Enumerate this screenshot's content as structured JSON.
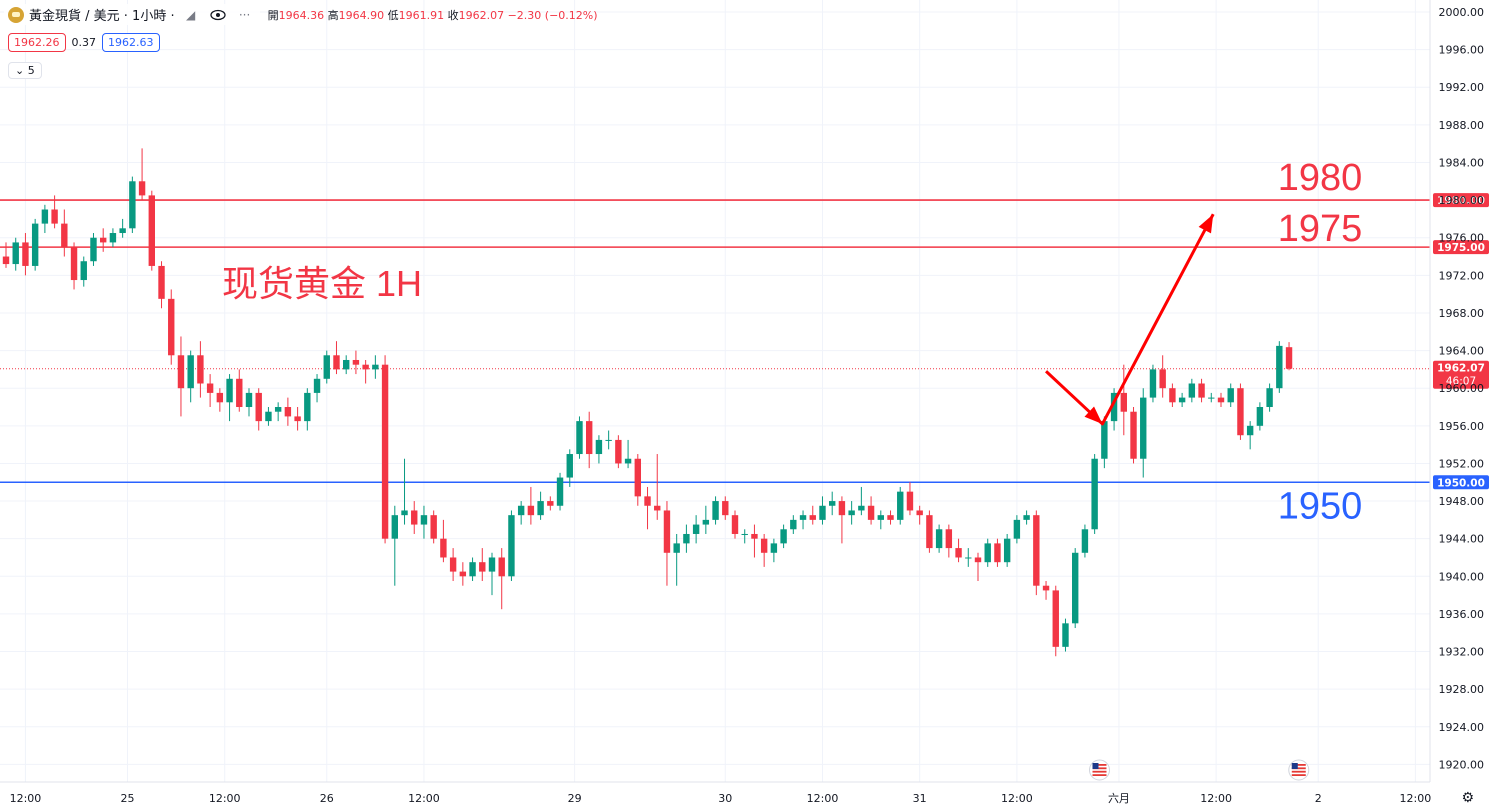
{
  "header": {
    "symbol_title": "黃金現貨 / 美元 · 1小時 ·",
    "open_label": "開",
    "open_value": "1964.36",
    "high_label": "高",
    "high_value": "1964.90",
    "low_label": "低",
    "low_value": "1961.91",
    "close_label": "收",
    "close_value": "1962.07",
    "change": "−2.30 (−0.12%)",
    "sell_price": "1962.26",
    "spread": "0.37",
    "buy_price": "1962.63",
    "indicator_count": "5"
  },
  "colors": {
    "up": "#089981",
    "down": "#f23645",
    "resistance_line": "#f23645",
    "support_line": "#2962ff",
    "annotation_red": "#f23645",
    "annotation_blue": "#2962ff",
    "arrow": "#ff0000"
  },
  "icons": [
    "gold-symbol-icon",
    "hide-icon",
    "eye-icon",
    "more-icon",
    "us-flag-event-icon",
    "settings-icon"
  ],
  "chart_data": {
    "type": "candlestick",
    "title": "现货黄金 1H",
    "ylim": [
      1918,
      2002
    ],
    "y_ticks": [
      "2000.00",
      "1996.00",
      "1992.00",
      "1988.00",
      "1984.00",
      "1980.00",
      "1976.00",
      "1972.00",
      "1968.00",
      "1964.00",
      "1960.00",
      "1956.00",
      "1952.00",
      "1948.00",
      "1944.00",
      "1940.00",
      "1936.00",
      "1932.00",
      "1928.00",
      "1924.00",
      "1920.00"
    ],
    "x_ticks": [
      "12:00",
      "25",
      "12:00",
      "26",
      "12:00",
      "29",
      "30",
      "12:00",
      "31",
      "12:00",
      "六月",
      "12:00",
      "2",
      "12:00"
    ],
    "x_tick_index": [
      2,
      12.5,
      22.5,
      33,
      43,
      58.5,
      74,
      84,
      94,
      104,
      114.5,
      124.5,
      135,
      145
    ],
    "horizontal_lines": [
      {
        "price": 1980.0,
        "label": "1980.00",
        "annotation": "1980",
        "color": "#f23645"
      },
      {
        "price": 1975.0,
        "label": "1975.00",
        "annotation": "1975",
        "color": "#f23645"
      },
      {
        "price": 1950.0,
        "label": "1950.00",
        "annotation": "1950",
        "color": "#2962ff"
      }
    ],
    "last_price": {
      "value": 1962.07,
      "label": "1962.07",
      "countdown": "46:07"
    },
    "projection_arrow": [
      [
        107,
        1961.8
      ],
      [
        112.8,
        1956.2
      ],
      [
        124.2,
        1978.5
      ]
    ],
    "event_markers_index": [
      112.5,
      133
    ],
    "candles": [
      [
        1974.0,
        1975.5,
        1972.8,
        1973.2
      ],
      [
        1973.2,
        1976.0,
        1972.5,
        1975.5
      ],
      [
        1975.5,
        1976.5,
        1972.0,
        1973.0
      ],
      [
        1973.0,
        1978.0,
        1972.5,
        1977.5
      ],
      [
        1977.5,
        1979.5,
        1976.5,
        1979.0
      ],
      [
        1979.0,
        1980.5,
        1977.0,
        1977.5
      ],
      [
        1977.5,
        1979.0,
        1974.0,
        1975.0
      ],
      [
        1975.0,
        1975.5,
        1970.5,
        1971.5
      ],
      [
        1971.5,
        1974.0,
        1970.8,
        1973.5
      ],
      [
        1973.5,
        1976.5,
        1973.0,
        1976.0
      ],
      [
        1976.0,
        1977.0,
        1974.5,
        1975.5
      ],
      [
        1975.5,
        1977.0,
        1975.0,
        1976.5
      ],
      [
        1976.5,
        1978.0,
        1976.0,
        1977.0
      ],
      [
        1977.0,
        1982.5,
        1976.5,
        1982.0
      ],
      [
        1982.0,
        1985.5,
        1980.0,
        1980.5
      ],
      [
        1980.5,
        1981.0,
        1972.5,
        1973.0
      ],
      [
        1973.0,
        1973.5,
        1968.5,
        1969.5
      ],
      [
        1969.5,
        1970.5,
        1962.5,
        1963.5
      ],
      [
        1963.5,
        1965.5,
        1957.0,
        1960.0
      ],
      [
        1960.0,
        1964.0,
        1958.5,
        1963.5
      ],
      [
        1963.5,
        1965.0,
        1959.0,
        1960.5
      ],
      [
        1960.5,
        1961.5,
        1958.0,
        1959.5
      ],
      [
        1959.5,
        1960.0,
        1957.5,
        1958.5
      ],
      [
        1958.5,
        1961.5,
        1956.5,
        1961.0
      ],
      [
        1961.0,
        1962.0,
        1957.5,
        1958.0
      ],
      [
        1958.0,
        1960.0,
        1957.0,
        1959.5
      ],
      [
        1959.5,
        1960.0,
        1955.5,
        1956.5
      ],
      [
        1956.5,
        1958.0,
        1956.0,
        1957.5
      ],
      [
        1957.5,
        1958.5,
        1956.5,
        1958.0
      ],
      [
        1958.0,
        1959.0,
        1956.0,
        1957.0
      ],
      [
        1957.0,
        1958.0,
        1955.5,
        1956.5
      ],
      [
        1956.5,
        1960.0,
        1955.5,
        1959.5
      ],
      [
        1959.5,
        1961.5,
        1958.5,
        1961.0
      ],
      [
        1961.0,
        1964.0,
        1960.5,
        1963.5
      ],
      [
        1963.5,
        1965.0,
        1961.5,
        1962.0
      ],
      [
        1962.0,
        1963.5,
        1961.5,
        1963.0
      ],
      [
        1963.0,
        1964.0,
        1961.5,
        1962.5
      ],
      [
        1962.5,
        1963.0,
        1960.5,
        1962.0
      ],
      [
        1962.0,
        1963.5,
        1961.0,
        1962.5
      ],
      [
        1962.5,
        1963.5,
        1943.5,
        1944.0
      ],
      [
        1944.0,
        1947.5,
        1939.0,
        1946.5
      ],
      [
        1946.5,
        1952.5,
        1945.5,
        1947.0
      ],
      [
        1947.0,
        1948.0,
        1944.5,
        1945.5
      ],
      [
        1945.5,
        1947.5,
        1944.0,
        1946.5
      ],
      [
        1946.5,
        1947.0,
        1943.5,
        1944.0
      ],
      [
        1944.0,
        1946.0,
        1941.5,
        1942.0
      ],
      [
        1942.0,
        1943.0,
        1939.5,
        1940.5
      ],
      [
        1940.5,
        1941.5,
        1939.0,
        1940.0
      ],
      [
        1940.0,
        1942.0,
        1939.5,
        1941.5
      ],
      [
        1941.5,
        1943.0,
        1939.5,
        1940.5
      ],
      [
        1940.5,
        1942.5,
        1938.0,
        1942.0
      ],
      [
        1942.0,
        1943.0,
        1936.5,
        1940.0
      ],
      [
        1940.0,
        1947.0,
        1939.5,
        1946.5
      ],
      [
        1946.5,
        1948.0,
        1945.5,
        1947.5
      ],
      [
        1947.5,
        1949.5,
        1945.5,
        1946.5
      ],
      [
        1946.5,
        1949.0,
        1946.0,
        1948.0
      ],
      [
        1948.0,
        1948.5,
        1947.0,
        1947.5
      ],
      [
        1947.5,
        1951.0,
        1947.0,
        1950.5
      ],
      [
        1950.5,
        1953.5,
        1949.5,
        1953.0
      ],
      [
        1953.0,
        1957.0,
        1952.5,
        1956.5
      ],
      [
        1956.5,
        1957.5,
        1951.5,
        1953.0
      ],
      [
        1953.0,
        1955.0,
        1952.0,
        1954.5
      ],
      [
        1954.5,
        1955.5,
        1953.5,
        1954.5
      ],
      [
        1954.5,
        1955.0,
        1951.5,
        1952.0
      ],
      [
        1952.0,
        1954.5,
        1951.5,
        1952.5
      ],
      [
        1952.5,
        1953.0,
        1947.5,
        1948.5
      ],
      [
        1948.5,
        1949.5,
        1945.0,
        1947.5
      ],
      [
        1947.5,
        1953.0,
        1946.0,
        1947.0
      ],
      [
        1947.0,
        1948.0,
        1939.0,
        1942.5
      ],
      [
        1942.5,
        1944.5,
        1939.0,
        1943.5
      ],
      [
        1943.5,
        1945.5,
        1942.5,
        1944.5
      ],
      [
        1944.5,
        1946.5,
        1943.5,
        1945.5
      ],
      [
        1945.5,
        1947.5,
        1944.5,
        1946.0
      ],
      [
        1946.0,
        1948.5,
        1945.5,
        1948.0
      ],
      [
        1948.0,
        1948.5,
        1946.0,
        1946.5
      ],
      [
        1946.5,
        1947.0,
        1944.0,
        1944.5
      ],
      [
        1944.5,
        1945.0,
        1943.5,
        1944.5
      ],
      [
        1944.5,
        1945.5,
        1942.0,
        1944.0
      ],
      [
        1944.0,
        1944.5,
        1941.0,
        1942.5
      ],
      [
        1942.5,
        1944.0,
        1941.5,
        1943.5
      ],
      [
        1943.5,
        1945.5,
        1943.0,
        1945.0
      ],
      [
        1945.0,
        1946.5,
        1944.5,
        1946.0
      ],
      [
        1946.0,
        1947.0,
        1945.0,
        1946.5
      ],
      [
        1946.5,
        1947.5,
        1945.5,
        1946.0
      ],
      [
        1946.0,
        1948.5,
        1945.5,
        1947.5
      ],
      [
        1947.5,
        1949.0,
        1946.5,
        1948.0
      ],
      [
        1948.0,
        1948.5,
        1943.5,
        1946.5
      ],
      [
        1946.5,
        1948.0,
        1945.5,
        1947.0
      ],
      [
        1947.0,
        1949.5,
        1946.5,
        1947.5
      ],
      [
        1947.5,
        1948.5,
        1945.5,
        1946.0
      ],
      [
        1946.0,
        1947.0,
        1945.0,
        1946.5
      ],
      [
        1946.5,
        1947.0,
        1945.5,
        1946.0
      ],
      [
        1946.0,
        1949.5,
        1945.5,
        1949.0
      ],
      [
        1949.0,
        1950.0,
        1946.5,
        1947.0
      ],
      [
        1947.0,
        1947.5,
        1945.5,
        1946.5
      ],
      [
        1946.5,
        1947.0,
        1942.5,
        1943.0
      ],
      [
        1943.0,
        1945.5,
        1942.5,
        1945.0
      ],
      [
        1945.0,
        1945.5,
        1942.0,
        1943.0
      ],
      [
        1943.0,
        1944.0,
        1941.5,
        1942.0
      ],
      [
        1942.0,
        1943.0,
        1941.0,
        1942.0
      ],
      [
        1942.0,
        1942.5,
        1939.5,
        1941.5
      ],
      [
        1941.5,
        1944.0,
        1941.0,
        1943.5
      ],
      [
        1943.5,
        1944.0,
        1941.0,
        1941.5
      ],
      [
        1941.5,
        1944.5,
        1941.0,
        1944.0
      ],
      [
        1944.0,
        1946.5,
        1943.5,
        1946.0
      ],
      [
        1946.0,
        1947.0,
        1945.5,
        1946.5
      ],
      [
        1946.5,
        1947.0,
        1938.0,
        1939.0
      ],
      [
        1939.0,
        1939.5,
        1937.5,
        1938.5
      ],
      [
        1938.5,
        1939.0,
        1931.5,
        1932.5
      ],
      [
        1932.5,
        1935.5,
        1932.0,
        1935.0
      ],
      [
        1935.0,
        1943.0,
        1934.5,
        1942.5
      ],
      [
        1942.5,
        1945.5,
        1942.0,
        1945.0
      ],
      [
        1945.0,
        1953.0,
        1944.5,
        1952.5
      ],
      [
        1952.5,
        1957.0,
        1951.5,
        1956.5
      ],
      [
        1956.5,
        1960.0,
        1955.5,
        1959.5
      ],
      [
        1959.5,
        1962.5,
        1955.0,
        1957.5
      ],
      [
        1957.5,
        1958.0,
        1952.0,
        1952.5
      ],
      [
        1952.5,
        1960.0,
        1950.5,
        1959.0
      ],
      [
        1959.0,
        1962.5,
        1958.5,
        1962.0
      ],
      [
        1962.0,
        1963.5,
        1959.0,
        1960.0
      ],
      [
        1960.0,
        1960.5,
        1958.0,
        1958.5
      ],
      [
        1958.5,
        1959.5,
        1958.0,
        1959.0
      ],
      [
        1959.0,
        1961.0,
        1958.5,
        1960.5
      ],
      [
        1960.5,
        1961.0,
        1958.5,
        1959.0
      ],
      [
        1959.0,
        1959.5,
        1958.5,
        1959.0
      ],
      [
        1959.0,
        1959.5,
        1958.0,
        1958.5
      ],
      [
        1958.5,
        1960.5,
        1958.0,
        1960.0
      ],
      [
        1960.0,
        1960.5,
        1954.5,
        1955.0
      ],
      [
        1955.0,
        1956.5,
        1953.5,
        1956.0
      ],
      [
        1956.0,
        1958.5,
        1955.5,
        1958.0
      ],
      [
        1958.0,
        1960.5,
        1957.5,
        1960.0
      ],
      [
        1960.0,
        1965.0,
        1959.5,
        1964.5
      ],
      [
        1964.36,
        1964.9,
        1961.91,
        1962.07
      ]
    ]
  }
}
